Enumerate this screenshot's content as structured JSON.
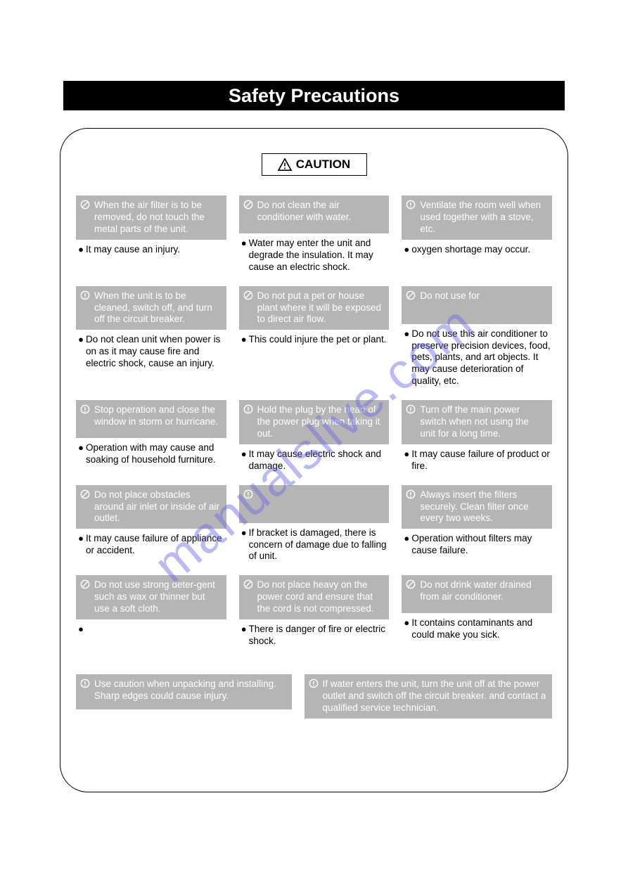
{
  "page": {
    "title": "Safety Precautions",
    "caution_label": "CAUTION",
    "watermark": "manualslive.com",
    "colors": {
      "title_bg": "#000000",
      "title_fg": "#ffffff",
      "head_bg": "#b5b5b5",
      "head_fg": "#ffffff",
      "body_fg": "#000000",
      "page_bg": "#ffffff",
      "watermark": "#6a6ae8"
    }
  },
  "cells": [
    {
      "icon": "prohibit",
      "head": "When the air filter is to be removed, do not touch the metal parts of the unit.",
      "body": "It may cause an injury."
    },
    {
      "icon": "prohibit",
      "head": "Do not clean the air conditioner with water.",
      "body": "Water may enter the unit and degrade the insulation. It may cause an electric shock."
    },
    {
      "icon": "info",
      "head": "Ventilate the room well when used together with a stove, etc.",
      "body": "                       oxygen shortage may occur."
    },
    {
      "icon": "info",
      "head": "When the unit is to be cleaned, switch off, and turn off the circuit breaker.",
      "body": "Do not clean unit when power is on as it may cause fire and electric shock, cause an injury."
    },
    {
      "icon": "prohibit",
      "head": "Do not put a pet or house plant where it will be exposed to direct air flow.",
      "body": "This could injure the pet or plant."
    },
    {
      "icon": "prohibit",
      "head": "Do not use for",
      "body": "Do not use this air conditioner to preserve precision devices, food, pets, plants, and art objects. It may cause deterioration of quality, etc."
    },
    {
      "icon": "info",
      "head": "Stop operation and close the window in storm or hurricane.",
      "body": "Operation  with                           may cause                           and soaking of household furniture."
    },
    {
      "icon": "info",
      "head": "Hold the plug by the head of the power plug when taking it out.",
      "body": "It may cause electric shock and damage."
    },
    {
      "icon": "info",
      "head": "Turn off the main power switch when not using the unit for a long time.",
      "body": "It may cause failure of product or fire."
    },
    {
      "icon": "prohibit",
      "head": "Do not place obstacles around air inlet or inside of air outlet.",
      "body": "It may cause failure of appliance or accident."
    },
    {
      "icon": "info",
      "head": "",
      "body": "If bracket is damaged, there is concern of damage due to falling of unit."
    },
    {
      "icon": "info",
      "head": "Always insert the filters securely. Clean filter once every two weeks.",
      "body": "Operation without filters may cause failure."
    },
    {
      "icon": "prohibit",
      "head": "Do not use strong deter-gent such as wax or thinner but use a soft cloth.",
      "body": ""
    },
    {
      "icon": "prohibit",
      "head": "Do not place heavy          on the power cord and ensure that the cord is not compressed.",
      "body": "There is danger of fire or electric shock."
    },
    {
      "icon": "prohibit",
      "head": "Do not drink water drained from air conditioner.",
      "body": "It contains contaminants and could make you sick."
    }
  ],
  "bottom": [
    {
      "icon": "info",
      "head": "Use caution when unpacking and installing. Sharp edges could cause injury."
    },
    {
      "icon": "info",
      "head": "If water enters the unit, turn the unit off at the power outlet and switch off the circuit breaker.         and contact a qualified service technician."
    }
  ]
}
